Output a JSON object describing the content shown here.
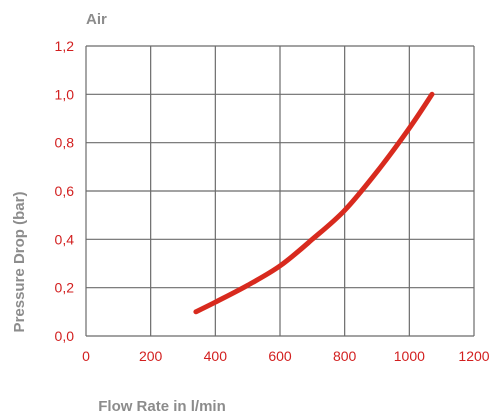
{
  "chart_data": {
    "type": "line",
    "title": "Air",
    "xlabel": "Flow Rate in l/min",
    "ylabel": "Pressure Drop (bar)",
    "xlim": [
      0,
      1200
    ],
    "ylim": [
      0,
      1.2
    ],
    "x_ticks": [
      "0",
      "200",
      "400",
      "600",
      "800",
      "1000",
      "1200"
    ],
    "y_ticks": [
      "0,0",
      "0,2",
      "0,4",
      "0,6",
      "0,8",
      "1,0",
      "1,2"
    ],
    "grid": true,
    "series": [
      {
        "color": "#d82a1e",
        "x": [
          340,
          400,
          500,
          600,
          700,
          800,
          900,
          1000,
          1070
        ],
        "y": [
          0.1,
          0.14,
          0.21,
          0.29,
          0.4,
          0.52,
          0.68,
          0.86,
          1.0
        ]
      }
    ]
  }
}
